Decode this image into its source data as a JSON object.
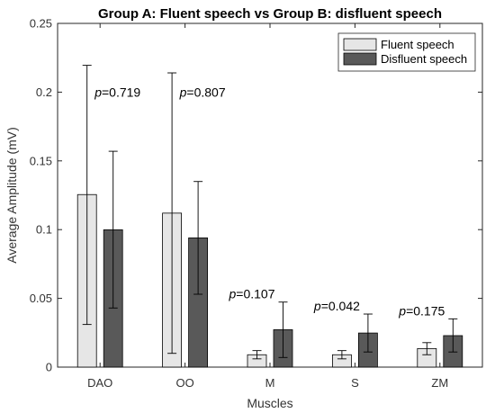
{
  "chart_data": {
    "type": "bar",
    "title": "Group A: Fluent speech vs Group B: disfluent speech",
    "xlabel": "Muscles",
    "ylabel": "Average Amplitude (mV)",
    "ylim": [
      0,
      0.25
    ],
    "yticks": [
      "0",
      "0.05",
      "0.1",
      "0.15",
      "0.2",
      "0.25"
    ],
    "categories": [
      "DAO",
      "OO",
      "M",
      "S",
      "ZM"
    ],
    "series": [
      {
        "name": "Fluent speech",
        "color": "#e6e6e6",
        "values": [
          0.1255,
          0.112,
          0.009,
          0.009,
          0.0135
        ],
        "err_low": [
          0.031,
          0.01,
          0.006,
          0.006,
          0.009
        ],
        "err_high": [
          0.2195,
          0.214,
          0.012,
          0.012,
          0.0178
        ]
      },
      {
        "name": "Disfluent speech",
        "color": "#595959",
        "values": [
          0.0999,
          0.094,
          0.0272,
          0.0248,
          0.0229
        ],
        "err_low": [
          0.043,
          0.053,
          0.007,
          0.011,
          0.011
        ],
        "err_high": [
          0.157,
          0.135,
          0.0473,
          0.0386,
          0.0351
        ]
      }
    ],
    "annotations": [
      {
        "prefix": "p",
        "text": "=0.719"
      },
      {
        "prefix": "p",
        "text": "=0.807"
      },
      {
        "prefix": "p",
        "text": "=0.107"
      },
      {
        "prefix": "p",
        "text": "=0.042"
      },
      {
        "prefix": "p",
        "text": "=0.175"
      }
    ],
    "legend_position": "top-right",
    "grid": false
  }
}
